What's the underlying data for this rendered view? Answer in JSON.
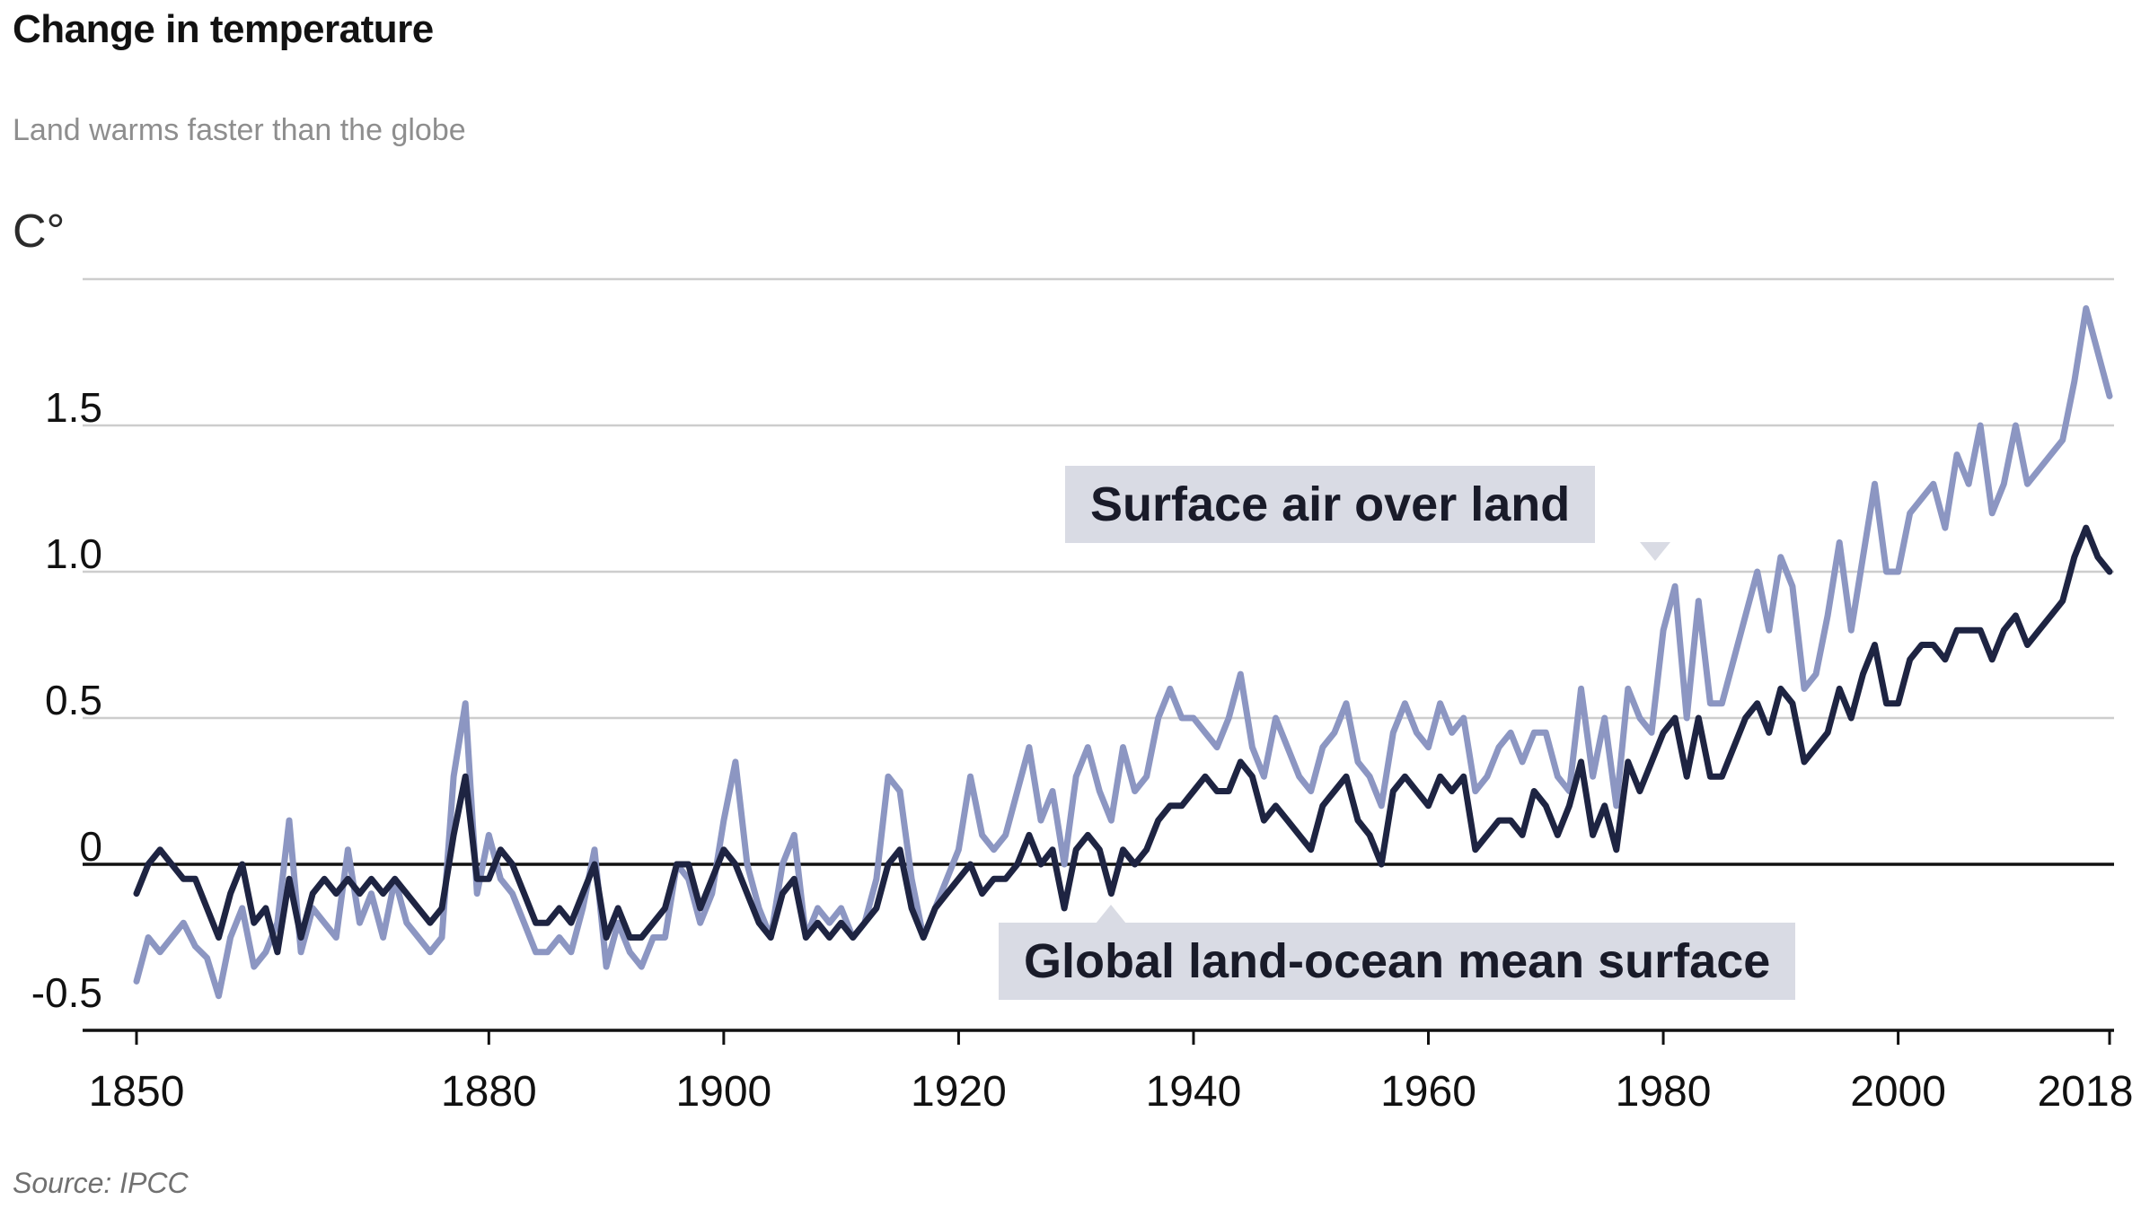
{
  "chart_data": {
    "type": "line",
    "title": "Change in temperature",
    "subtitle": "Land warms faster than the globe",
    "unit_label": "C°",
    "source": "Source: IPCC",
    "xlim": [
      1850,
      2018
    ],
    "ylim": [
      -0.55,
      2.0
    ],
    "legend_position": "inline-callouts",
    "grid": true,
    "axes": {
      "gridlines": [
        2.0,
        1.5,
        1.0,
        0.5
      ],
      "zero_line": 0,
      "yticks": [
        {
          "value": 1.5,
          "label": "1.5"
        },
        {
          "value": 1.0,
          "label": "1.0"
        },
        {
          "value": 0.5,
          "label": "0.5"
        },
        {
          "value": 0,
          "label": "0"
        },
        {
          "value": -0.5,
          "label": "-0.5"
        }
      ],
      "xticks": [
        1850,
        1880,
        1900,
        1920,
        1940,
        1960,
        1980,
        2000,
        2018
      ]
    },
    "colors": {
      "surface_air_over_land": "#8C96C2",
      "global_land_ocean_mean_surface": "#1E2442",
      "grid": "#cdcdcd",
      "axis": "#111111",
      "annotation_background": "#d9dbe4",
      "annotation_text": "#191b29"
    },
    "series": [
      {
        "name": "surface_air_over_land",
        "label": "Surface air over land",
        "color": "#8C96C2",
        "values": [
          -0.4,
          -0.25,
          -0.3,
          -0.25,
          -0.2,
          -0.28,
          -0.32,
          -0.45,
          -0.25,
          -0.15,
          -0.35,
          -0.3,
          -0.2,
          0.15,
          -0.3,
          -0.15,
          -0.2,
          -0.25,
          0.05,
          -0.2,
          -0.1,
          -0.25,
          -0.05,
          -0.2,
          -0.25,
          -0.3,
          -0.25,
          0.3,
          0.55,
          -0.1,
          0.1,
          -0.05,
          -0.1,
          -0.2,
          -0.3,
          -0.3,
          -0.25,
          -0.3,
          -0.15,
          0.05,
          -0.35,
          -0.2,
          -0.3,
          -0.35,
          -0.25,
          -0.25,
          0.0,
          -0.05,
          -0.2,
          -0.1,
          0.15,
          0.35,
          0.0,
          -0.15,
          -0.25,
          0.0,
          0.1,
          -0.25,
          -0.15,
          -0.2,
          -0.15,
          -0.25,
          -0.2,
          -0.05,
          0.3,
          0.25,
          -0.05,
          -0.25,
          -0.15,
          -0.05,
          0.05,
          0.3,
          0.1,
          0.05,
          0.1,
          0.25,
          0.4,
          0.15,
          0.25,
          0.0,
          0.3,
          0.4,
          0.25,
          0.15,
          0.4,
          0.25,
          0.3,
          0.5,
          0.6,
          0.5,
          0.5,
          0.45,
          0.4,
          0.5,
          0.65,
          0.4,
          0.3,
          0.5,
          0.4,
          0.3,
          0.25,
          0.4,
          0.45,
          0.55,
          0.35,
          0.3,
          0.2,
          0.45,
          0.55,
          0.45,
          0.4,
          0.55,
          0.45,
          0.5,
          0.25,
          0.3,
          0.4,
          0.45,
          0.35,
          0.45,
          0.45,
          0.3,
          0.25,
          0.6,
          0.3,
          0.5,
          0.2,
          0.6,
          0.5,
          0.45,
          0.8,
          0.95,
          0.5,
          0.9,
          0.55,
          0.55,
          0.7,
          0.85,
          1.0,
          0.8,
          1.05,
          0.95,
          0.6,
          0.65,
          0.85,
          1.1,
          0.8,
          1.05,
          1.3,
          1.0,
          1.0,
          1.2,
          1.25,
          1.3,
          1.15,
          1.4,
          1.3,
          1.5,
          1.2,
          1.3,
          1.5,
          1.3,
          1.35,
          1.4,
          1.45,
          1.65,
          1.9,
          1.75,
          1.6
        ]
      },
      {
        "name": "global_land_ocean_mean_surface",
        "label": "Global land-ocean mean surface",
        "color": "#1E2442",
        "values": [
          -0.1,
          0.0,
          0.05,
          0.0,
          -0.05,
          -0.05,
          -0.15,
          -0.25,
          -0.1,
          0.0,
          -0.2,
          -0.15,
          -0.3,
          -0.05,
          -0.25,
          -0.1,
          -0.05,
          -0.1,
          -0.05,
          -0.1,
          -0.05,
          -0.1,
          -0.05,
          -0.1,
          -0.15,
          -0.2,
          -0.15,
          0.1,
          0.3,
          -0.05,
          -0.05,
          0.05,
          0.0,
          -0.1,
          -0.2,
          -0.2,
          -0.15,
          -0.2,
          -0.1,
          0.0,
          -0.25,
          -0.15,
          -0.25,
          -0.25,
          -0.2,
          -0.15,
          0.0,
          0.0,
          -0.15,
          -0.05,
          0.05,
          0.0,
          -0.1,
          -0.2,
          -0.25,
          -0.1,
          -0.05,
          -0.25,
          -0.2,
          -0.25,
          -0.2,
          -0.25,
          -0.2,
          -0.15,
          0.0,
          0.05,
          -0.15,
          -0.25,
          -0.15,
          -0.1,
          -0.05,
          0.0,
          -0.1,
          -0.05,
          -0.05,
          0.0,
          0.1,
          0.0,
          0.05,
          -0.15,
          0.05,
          0.1,
          0.05,
          -0.1,
          0.05,
          0.0,
          0.05,
          0.15,
          0.2,
          0.2,
          0.25,
          0.3,
          0.25,
          0.25,
          0.35,
          0.3,
          0.15,
          0.2,
          0.15,
          0.1,
          0.05,
          0.2,
          0.25,
          0.3,
          0.15,
          0.1,
          0.0,
          0.25,
          0.3,
          0.25,
          0.2,
          0.3,
          0.25,
          0.3,
          0.05,
          0.1,
          0.15,
          0.15,
          0.1,
          0.25,
          0.2,
          0.1,
          0.2,
          0.35,
          0.1,
          0.2,
          0.05,
          0.35,
          0.25,
          0.35,
          0.45,
          0.5,
          0.3,
          0.5,
          0.3,
          0.3,
          0.4,
          0.5,
          0.55,
          0.45,
          0.6,
          0.55,
          0.35,
          0.4,
          0.45,
          0.6,
          0.5,
          0.65,
          0.75,
          0.55,
          0.55,
          0.7,
          0.75,
          0.75,
          0.7,
          0.8,
          0.8,
          0.8,
          0.7,
          0.8,
          0.85,
          0.75,
          0.8,
          0.85,
          0.9,
          1.05,
          1.15,
          1.05,
          1.0
        ]
      }
    ]
  }
}
